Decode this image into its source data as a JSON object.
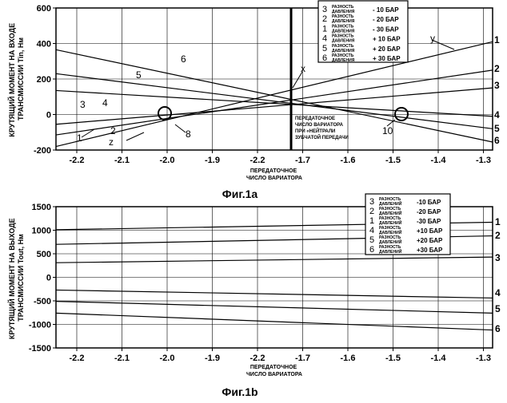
{
  "chart_data": [
    {
      "type": "line",
      "figure_label": "Фиг.1a",
      "ylabel_lines": [
        "КРУТЯЩИЙ МОМЕНТ НА ВХОДЕ",
        "ТРАНСМИССИИ Tin, Нм"
      ],
      "xlabel_lines": [
        "ПЕРЕДАТОЧНОЕ",
        "ЧИСЛО ВАРИАТОРА"
      ],
      "y_ticks": [
        "600",
        "400",
        "200",
        "0",
        "-200"
      ],
      "x_ticks": [
        "-2.2",
        "-2.1",
        "-2.0",
        "-1.9",
        "-2.2",
        "-1.7",
        "-1.6",
        "-1.5",
        "-1.4",
        "-1.3"
      ],
      "ylim": [
        -200,
        600
      ],
      "grid": true,
      "legend_position": "top-right",
      "legend": [
        {
          "num": "3",
          "label": "РАЗНОСТЬ ДАВЛЕНИЯ",
          "value": "- 10 БАР"
        },
        {
          "num": "2",
          "label": "РАЗНОСТЬ ДАВЛЕНИЯ",
          "value": "- 20 БАР"
        },
        {
          "num": "1",
          "label": "РАЗНОСТЬ ДАВЛЕНИЯ",
          "value": "- 30 БАР"
        },
        {
          "num": "4",
          "label": "РАЗНОСТЬ ДАВЛЕНИЯ",
          "value": "+ 10 БАР"
        },
        {
          "num": "5",
          "label": "РАЗНОСТЬ ДАВЛЕНИЯ",
          "value": "+ 20 БАР"
        },
        {
          "num": "6",
          "label": "РАЗНОСТЬ ДАВЛЕНИЯ",
          "value": "+ 30 БАР"
        }
      ],
      "series": [
        {
          "name": "1",
          "values": [
            -180,
            410
          ]
        },
        {
          "name": "2",
          "values": [
            -115,
            250
          ]
        },
        {
          "name": "3",
          "values": [
            -55,
            150
          ]
        },
        {
          "name": "4",
          "values": [
            135,
            -10
          ]
        },
        {
          "name": "5",
          "values": [
            230,
            -80
          ]
        },
        {
          "name": "6",
          "values": [
            365,
            -155
          ]
        }
      ],
      "neutral_line_annotation": [
        "ПЕРЕДАТОЧНОЕ",
        "ЧИСЛО ВАРИАТОРА",
        "ПРИ «НЕЙТРАЛИ",
        "ЗУБЧАТОЙ ПЕРЕДАЧИ"
      ],
      "annotations": [
        "x",
        "y",
        "z",
        "8",
        "10"
      ]
    },
    {
      "type": "line",
      "figure_label": "Фиг.1b",
      "ylabel_lines": [
        "КРУТЯЩИЙ МОМЕНТ НА ВЫХОДЕ",
        "ТРАНСМИССИИ Tout, Нм"
      ],
      "xlabel_lines": [
        "ПЕРЕДАТОЧНОЕ",
        "ЧИСЛО ВАРИАТОРА"
      ],
      "y_ticks": [
        "1500",
        "1000",
        "500",
        "0",
        "-500",
        "-1000",
        "-1500"
      ],
      "x_ticks": [
        "-2.2",
        "-2.1",
        "-2.0",
        "-1.9",
        "-2.2",
        "-1.7",
        "-1.6",
        "-1.5",
        "-1.4",
        "-1.3"
      ],
      "ylim": [
        -1500,
        1500
      ],
      "grid": true,
      "legend_position": "top-right",
      "legend": [
        {
          "num": "3",
          "label": "РАЗНОСТЬ ДАВЛЕНИЙ",
          "value": "-10 БАР"
        },
        {
          "num": "2",
          "label": "РАЗНОСТЬ ДАВЛЕНИЙ",
          "value": "-20 БАР"
        },
        {
          "num": "1",
          "label": "РАЗНОСТЬ ДАВЛЕНИЙ",
          "value": "-30 БАР"
        },
        {
          "num": "4",
          "label": "РАЗНОСТЬ ДАВЛЕНИЙ",
          "value": "+10 БАР"
        },
        {
          "num": "5",
          "label": "РАЗНОСТЬ ДАВЛЕНИЙ",
          "value": "+20 БАР"
        },
        {
          "num": "6",
          "label": "РАЗНОСТЬ ДАВЛЕНИЙ",
          "value": "+30 БАР"
        }
      ],
      "series": [
        {
          "name": "1",
          "values": [
            1010,
            1170
          ]
        },
        {
          "name": "2",
          "values": [
            700,
            880
          ]
        },
        {
          "name": "3",
          "values": [
            310,
            430
          ]
        },
        {
          "name": "4",
          "values": [
            -270,
            -440
          ]
        },
        {
          "name": "5",
          "values": [
            -510,
            -760
          ]
        },
        {
          "name": "6",
          "values": [
            -760,
            -1120
          ]
        }
      ]
    }
  ]
}
